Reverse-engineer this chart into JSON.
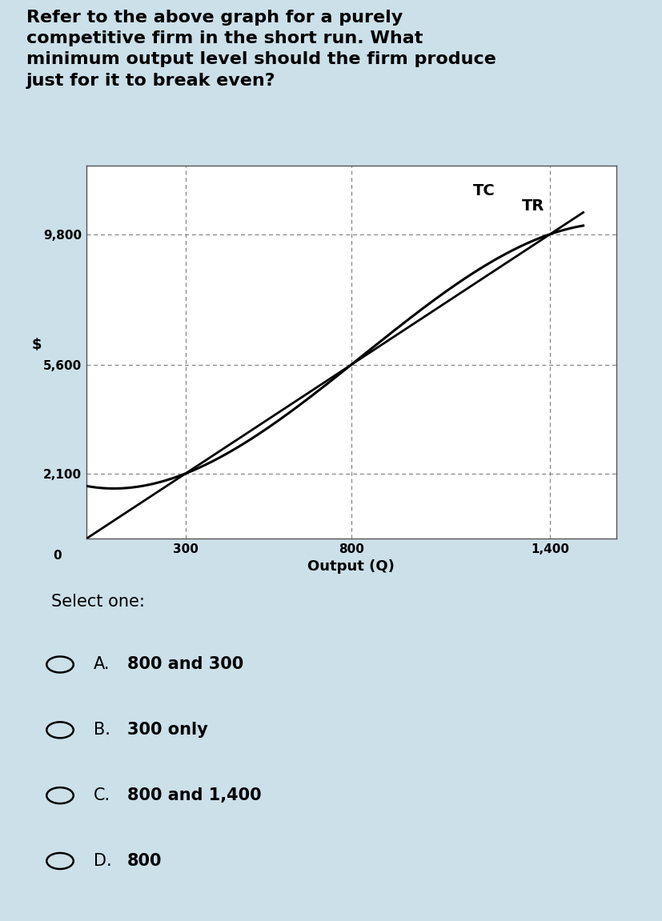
{
  "bg_color": "#cce0ea",
  "graph_bg": "#ffffff",
  "graph_border_color": "#aaaaaa",
  "title_text": "Refer to the above graph for a purely\ncompetitive firm in the short run. What\nminimum output level should the firm produce\njust for it to break even?",
  "title_fontsize": 16,
  "ylabel": "$",
  "xlabel": "Output (Q)",
  "yticks": [
    2100,
    5600,
    9800
  ],
  "xticks": [
    300,
    800,
    1400
  ],
  "x_min": 0,
  "x_max": 1600,
  "y_min": 0,
  "y_max": 12000,
  "tc_label": "TC",
  "tr_label": "TR",
  "select_one": "Select one:",
  "options": [
    {
      "letter": "A.",
      "text": "800 and 300"
    },
    {
      "letter": "B.",
      "text": "300 only"
    },
    {
      "letter": "C.",
      "text": "800 and 1,400"
    },
    {
      "letter": "D.",
      "text": "800"
    }
  ],
  "option_fontsize": 15,
  "tc_color": "#000000",
  "tr_color": "#000000",
  "dash_color": "#888888"
}
